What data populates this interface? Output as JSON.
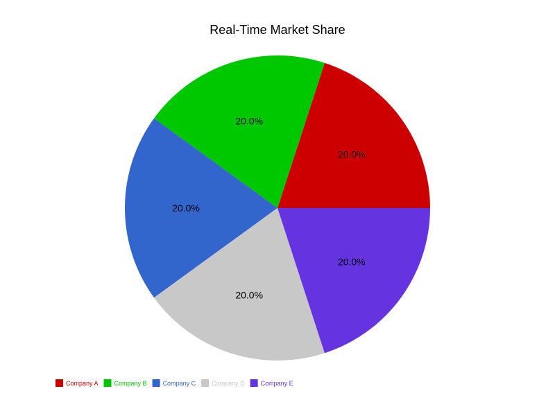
{
  "chart_data": {
    "type": "pie",
    "title": "Real-Time Market Share",
    "categories": [
      "Company A",
      "Company B",
      "Company C",
      "Company D",
      "Company E"
    ],
    "values": [
      20.0,
      20.0,
      20.0,
      20.0,
      20.0
    ],
    "labels": [
      "20.0%",
      "20.0%",
      "20.0%",
      "20.0%",
      "20.0%"
    ],
    "colors": [
      "#cc0000",
      "#00c800",
      "#3366cc",
      "#c8c8c8",
      "#6633e0"
    ],
    "legend_placement": "bottom-left"
  }
}
